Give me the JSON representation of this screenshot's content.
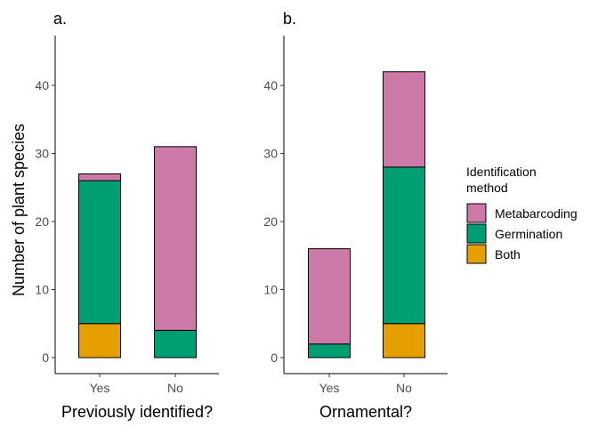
{
  "chart_data": [
    {
      "type": "bar",
      "stacked": true,
      "panel_label": "a.",
      "xlabel": "Previously identified?",
      "ylabel": "Number of plant species",
      "categories": [
        "Yes",
        "No"
      ],
      "ylim": [
        0,
        47
      ],
      "yticks": [
        0,
        10,
        20,
        30,
        40
      ],
      "series": [
        {
          "name": "Both",
          "values": [
            5,
            0
          ]
        },
        {
          "name": "Germination",
          "values": [
            21,
            4
          ]
        },
        {
          "name": "Metabarcoding",
          "values": [
            1,
            27
          ]
        }
      ]
    },
    {
      "type": "bar",
      "stacked": true,
      "panel_label": "b.",
      "xlabel": "Ornamental?",
      "ylabel": "",
      "categories": [
        "Yes",
        "No"
      ],
      "ylim": [
        0,
        47
      ],
      "yticks": [
        0,
        10,
        20,
        30,
        40
      ],
      "series": [
        {
          "name": "Both",
          "values": [
            0,
            5
          ]
        },
        {
          "name": "Germination",
          "values": [
            2,
            23
          ]
        },
        {
          "name": "Metabarcoding",
          "values": [
            14,
            14
          ]
        }
      ]
    }
  ],
  "legend": {
    "title_line1": "Identification",
    "title_line2": "method",
    "placement": "right",
    "items": [
      {
        "name": "Metabarcoding",
        "color": "#CC79A7"
      },
      {
        "name": "Germination",
        "color": "#009E73"
      },
      {
        "name": "Both",
        "color": "#E69F00"
      }
    ]
  },
  "colors": {
    "Metabarcoding": "#CC79A7",
    "Germination": "#009E73",
    "Both": "#E69F00"
  }
}
